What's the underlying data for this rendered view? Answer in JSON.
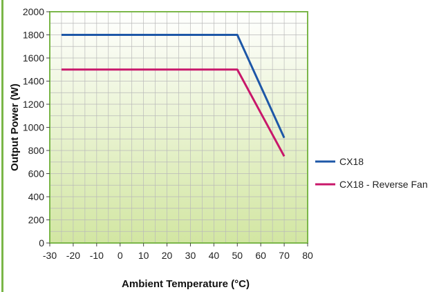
{
  "chart_data": {
    "type": "line",
    "title": "",
    "xlabel": "Ambient Temperature (°C)",
    "ylabel": "Output Power (W)",
    "xlim": [
      -30,
      80
    ],
    "ylim": [
      0,
      2000
    ],
    "xticks": [
      -30,
      -20,
      -10,
      0,
      10,
      20,
      30,
      40,
      50,
      60,
      70,
      80
    ],
    "yticks": [
      0,
      200,
      400,
      600,
      800,
      1000,
      1200,
      1400,
      1600,
      1800,
      2000
    ],
    "grid": true,
    "legend_position": "right",
    "series": [
      {
        "name": "CX18",
        "color": "#1d57a7",
        "x": [
          -25,
          50,
          70
        ],
        "y": [
          1800,
          1800,
          910
        ]
      },
      {
        "name": "CX18 - Reverse Fan",
        "color": "#c8176a",
        "x": [
          -25,
          50,
          70
        ],
        "y": [
          1500,
          1500,
          750
        ]
      }
    ],
    "colors": {
      "frame": "#7ab648",
      "grid": "#b9b9b9",
      "background_top": "#ffffff",
      "background_bottom": "#d2e6a2"
    }
  }
}
